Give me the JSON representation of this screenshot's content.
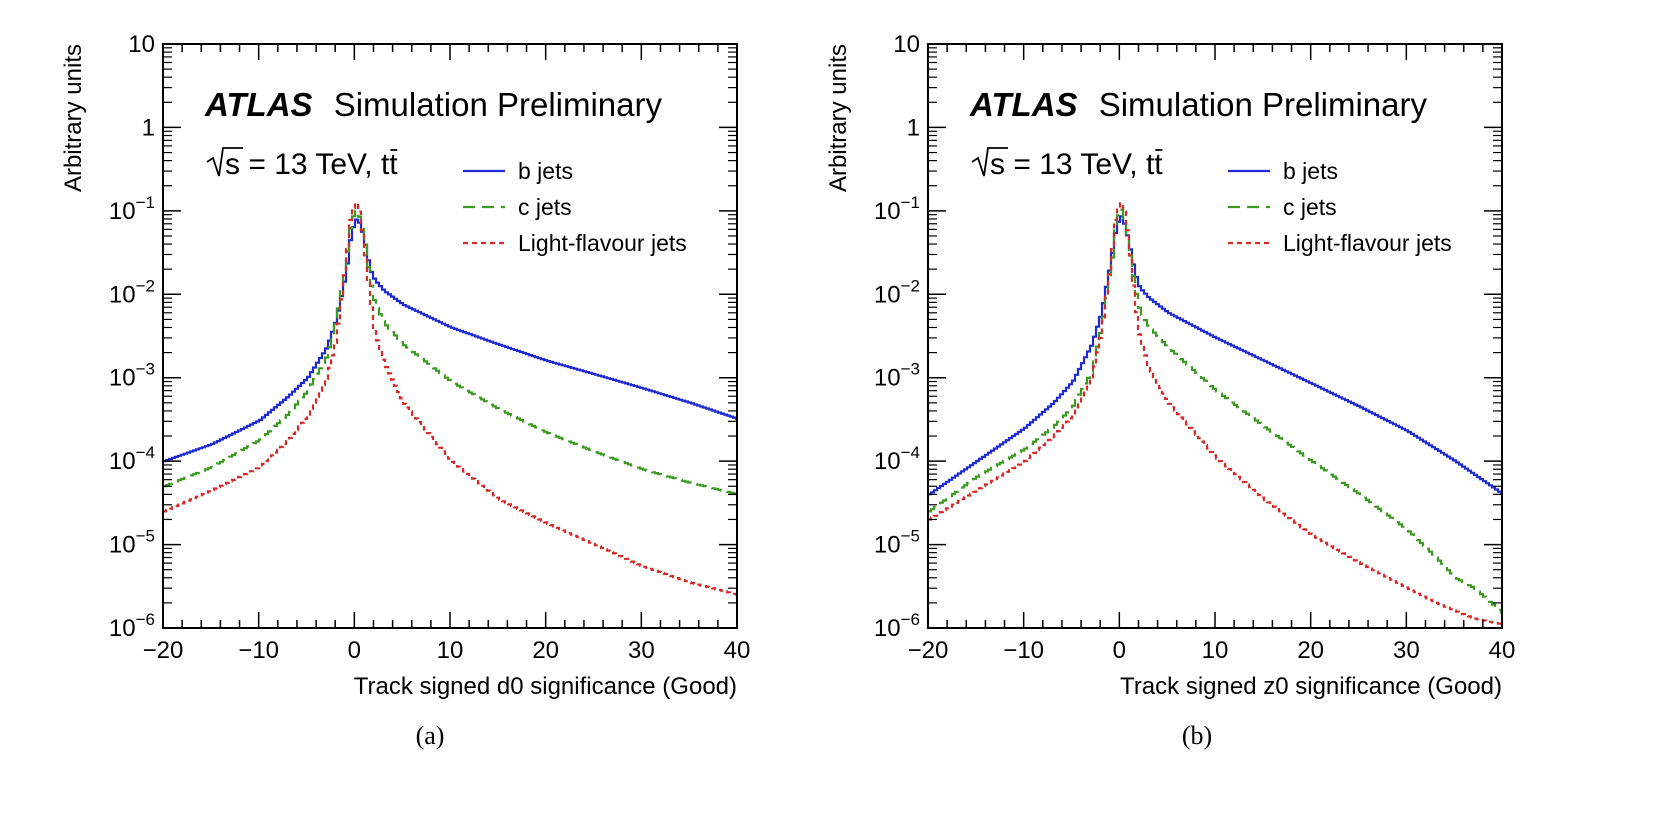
{
  "chart_data": [
    {
      "type": "line",
      "panel_label": "(a)",
      "xlabel": "Track signed d0 significance (Good)",
      "ylabel": "Arbitrary units",
      "xlim": [
        -20,
        40
      ],
      "ylim": [
        1e-06,
        10
      ],
      "yscale": "log",
      "x_ticks": [
        "−20",
        "−10",
        "0",
        "10",
        "20",
        "30",
        "40"
      ],
      "experiment": "ATLAS",
      "status": "Simulation Preliminary",
      "energy_prefix": "s",
      "energy_suffix": " = 13 TeV, t",
      "energy_tail": "t",
      "legend_position": "top-right",
      "series": [
        {
          "name": "b jets",
          "style": "solid",
          "color": "#1f2bd1",
          "x": [
            -20,
            -15,
            -10,
            -7,
            -5,
            -3,
            -2,
            -1,
            -0.5,
            0,
            0.5,
            1,
            1.5,
            2,
            3,
            5,
            10,
            15,
            20,
            25,
            30,
            35,
            40
          ],
          "y": [
            0.0001,
            0.00016,
            0.00031,
            0.0006,
            0.001,
            0.0023,
            0.005,
            0.018,
            0.05,
            0.08,
            0.07,
            0.04,
            0.02,
            0.015,
            0.011,
            0.0075,
            0.004,
            0.0025,
            0.0016,
            0.0011,
            0.00075,
            0.0005,
            0.00032
          ]
        },
        {
          "name": "c jets",
          "style": "dashed",
          "color": "#3c9a22",
          "x": [
            -20,
            -15,
            -10,
            -7,
            -5,
            -3,
            -2,
            -1,
            -0.5,
            0,
            0.5,
            1,
            1.5,
            2,
            3,
            5,
            10,
            15,
            20,
            25,
            30,
            35,
            40
          ],
          "y": [
            5e-05,
            8.5e-05,
            0.00018,
            0.00037,
            0.0007,
            0.0018,
            0.005,
            0.025,
            0.07,
            0.105,
            0.08,
            0.04,
            0.015,
            0.008,
            0.0045,
            0.0025,
            0.0009,
            0.00042,
            0.00022,
            0.00013,
            8e-05,
            5.5e-05,
            4e-05
          ]
        },
        {
          "name": "Light-flavour jets",
          "style": "dotted",
          "color": "#d52a2a",
          "x": [
            -20,
            -15,
            -10,
            -7,
            -5,
            -3,
            -2,
            -1,
            -0.5,
            0,
            0.5,
            1,
            1.5,
            2,
            3,
            5,
            10,
            15,
            20,
            25,
            30,
            35,
            40
          ],
          "y": [
            2.5e-05,
            4.5e-05,
            8.5e-05,
            0.00018,
            0.00035,
            0.001,
            0.003,
            0.025,
            0.09,
            0.13,
            0.09,
            0.03,
            0.009,
            0.0035,
            0.0015,
            0.0005,
            0.0001,
            3.5e-05,
            1.8e-05,
            1e-05,
            5.5e-06,
            3.5e-06,
            2.5e-06
          ]
        }
      ]
    },
    {
      "type": "line",
      "panel_label": "(b)",
      "xlabel": "Track signed z0 significance (Good)",
      "ylabel": "Arbitrary units",
      "xlim": [
        -20,
        40
      ],
      "ylim": [
        1e-06,
        10
      ],
      "yscale": "log",
      "x_ticks": [
        "−20",
        "−10",
        "0",
        "10",
        "20",
        "30",
        "40"
      ],
      "experiment": "ATLAS",
      "status": "Simulation Preliminary",
      "energy_prefix": "s",
      "energy_suffix": " = 13 TeV, t",
      "energy_tail": "t",
      "legend_position": "top-right",
      "series": [
        {
          "name": "b jets",
          "style": "solid",
          "color": "#1f2bd1",
          "x": [
            -20,
            -15,
            -10,
            -7,
            -5,
            -3,
            -2,
            -1,
            -0.5,
            0,
            0.5,
            1,
            1.5,
            2,
            3,
            5,
            10,
            15,
            20,
            25,
            30,
            35,
            40
          ],
          "y": [
            4e-05,
            0.0001,
            0.00025,
            0.0005,
            0.0009,
            0.0025,
            0.006,
            0.025,
            0.06,
            0.09,
            0.065,
            0.035,
            0.018,
            0.012,
            0.009,
            0.006,
            0.003,
            0.0016,
            0.00085,
            0.00045,
            0.00023,
            0.0001,
            4e-05
          ]
        },
        {
          "name": "c jets",
          "style": "dashed",
          "color": "#3c9a22",
          "x": [
            -20,
            -15,
            -10,
            -7,
            -5,
            -3,
            -2,
            -1,
            -0.5,
            0,
            0.5,
            1,
            1.5,
            2,
            3,
            5,
            10,
            15,
            20,
            25,
            30,
            33,
            35,
            37,
            40
          ],
          "y": [
            2.5e-05,
            6.5e-05,
            0.00014,
            0.00026,
            0.00045,
            0.0012,
            0.004,
            0.02,
            0.07,
            0.11,
            0.07,
            0.03,
            0.012,
            0.0065,
            0.004,
            0.0023,
            0.0007,
            0.00026,
            0.0001,
            4e-05,
            1.5e-05,
            7e-06,
            4e-06,
            3e-06,
            1.5e-06
          ]
        },
        {
          "name": "Light-flavour jets",
          "style": "dotted",
          "color": "#d52a2a",
          "x": [
            -20,
            -15,
            -10,
            -7,
            -5,
            -3,
            -2,
            -1,
            -0.5,
            0,
            0.5,
            1,
            1.5,
            2,
            3,
            5,
            10,
            15,
            20,
            25,
            30,
            33,
            35,
            37,
            40
          ],
          "y": [
            2e-05,
            4.5e-05,
            0.0001,
            0.0002,
            0.00035,
            0.001,
            0.0035,
            0.025,
            0.09,
            0.13,
            0.09,
            0.03,
            0.008,
            0.003,
            0.0013,
            0.0005,
            0.00011,
            3.5e-05,
            1.3e-05,
            6e-06,
            3e-06,
            2e-06,
            1.6e-06,
            1.3e-06,
            1.1e-06
          ]
        }
      ]
    }
  ]
}
